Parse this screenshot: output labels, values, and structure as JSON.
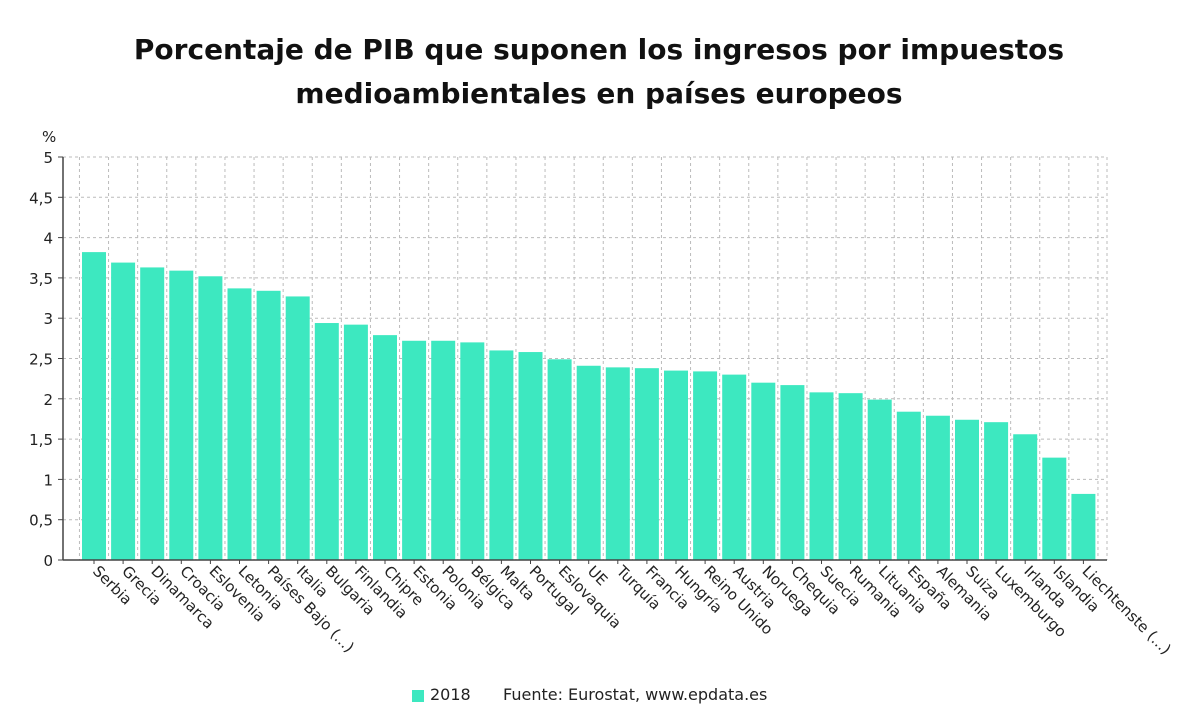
{
  "title_line1": "Porcentaje de PIB que suponen los ingresos por impuestos",
  "title_line2": "medioambientales en países europeos",
  "source": "Fuente: Eurostat, www.epdata.es",
  "colors": {
    "bar": "#3de8c0",
    "grid": "#bbbbbb",
    "axis": "#444444",
    "text": "#222222"
  },
  "chart_data": {
    "type": "bar",
    "title": "Porcentaje de PIB que suponen los ingresos por impuestos medioambientales en países europeos",
    "ylabel": "%",
    "xlabel": "",
    "ylim": [
      0,
      5
    ],
    "yticks": [
      0,
      0.5,
      1,
      1.5,
      2,
      2.5,
      3,
      3.5,
      4,
      4.5,
      5
    ],
    "ytick_labels": [
      "0",
      "0,5",
      "1",
      "1,5",
      "2",
      "2,5",
      "3",
      "3,5",
      "4",
      "4,5",
      "5"
    ],
    "grid": true,
    "legend": "bottom",
    "categories": [
      "Serbia",
      "Grecia",
      "Dinamarca",
      "Croacia",
      "Eslovenia",
      "Letonia",
      "Países Bajo (...)",
      "Italia",
      "Bulgaria",
      "Finlandia",
      "Chipre",
      "Estonia",
      "Polonia",
      "Bélgica",
      "Malta",
      "Portugal",
      "Eslovaquia",
      "UE",
      "Turquía",
      "Francia",
      "Hungría",
      "Reino Unido",
      "Austria",
      "Noruega",
      "Chequia",
      "Suecia",
      "Rumania",
      "Lituania",
      "España",
      "Alemania",
      "Suiza",
      "Luxemburgo",
      "Irlanda",
      "Islandia",
      "Liechtenste (...)"
    ],
    "series": [
      {
        "name": "2018",
        "values": [
          3.82,
          3.69,
          3.63,
          3.59,
          3.52,
          3.37,
          3.34,
          3.27,
          2.94,
          2.92,
          2.79,
          2.72,
          2.72,
          2.7,
          2.6,
          2.58,
          2.49,
          2.41,
          2.39,
          2.38,
          2.35,
          2.34,
          2.3,
          2.2,
          2.17,
          2.08,
          2.07,
          1.99,
          1.84,
          1.79,
          1.74,
          1.71,
          1.56,
          1.27,
          0.82
        ]
      }
    ]
  }
}
